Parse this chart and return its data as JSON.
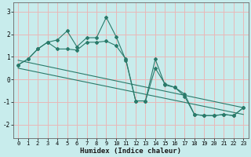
{
  "xlabel": "Humidex (Indice chaleur)",
  "bg_color": "#c8ecec",
  "grid_color": "#e8b8b8",
  "line_color": "#2a7a6a",
  "xlim": [
    -0.5,
    23.5
  ],
  "ylim": [
    -2.6,
    3.4
  ],
  "xticks": [
    0,
    1,
    2,
    3,
    4,
    5,
    6,
    7,
    8,
    9,
    10,
    11,
    12,
    13,
    14,
    15,
    16,
    17,
    18,
    19,
    20,
    21,
    22,
    23
  ],
  "yticks": [
    -2,
    -1,
    0,
    1,
    2,
    3
  ],
  "series1_x": [
    0,
    1,
    2,
    3,
    4,
    5,
    6,
    7,
    8,
    9,
    10,
    11,
    12,
    13,
    14,
    15,
    16,
    17,
    18,
    19,
    20,
    21,
    22,
    23
  ],
  "series1_y": [
    0.65,
    0.9,
    1.35,
    1.65,
    1.75,
    2.15,
    1.45,
    1.85,
    1.85,
    2.75,
    1.9,
    0.85,
    -0.95,
    -0.95,
    0.9,
    -0.25,
    -0.35,
    -0.75,
    -1.55,
    -1.6,
    -1.6,
    -1.55,
    -1.6,
    -1.25
  ],
  "series2_x": [
    0,
    1,
    2,
    3,
    4,
    5,
    6,
    7,
    8,
    9,
    10,
    11,
    12,
    13,
    14,
    15,
    16,
    17,
    18,
    19,
    20,
    21,
    22,
    23
  ],
  "series2_y": [
    0.65,
    0.9,
    1.35,
    1.65,
    1.35,
    1.35,
    1.3,
    1.65,
    1.65,
    1.7,
    1.5,
    0.9,
    -0.95,
    -0.95,
    0.5,
    -0.2,
    -0.35,
    -0.65,
    -1.55,
    -1.6,
    -1.6,
    -1.55,
    -1.6,
    -1.25
  ],
  "trend1_x": [
    0,
    23
  ],
  "trend1_y": [
    0.85,
    -1.25
  ],
  "trend2_x": [
    0,
    23
  ],
  "trend2_y": [
    0.5,
    -1.55
  ],
  "tick_fontsize": 5.5,
  "xlabel_fontsize": 6.5
}
